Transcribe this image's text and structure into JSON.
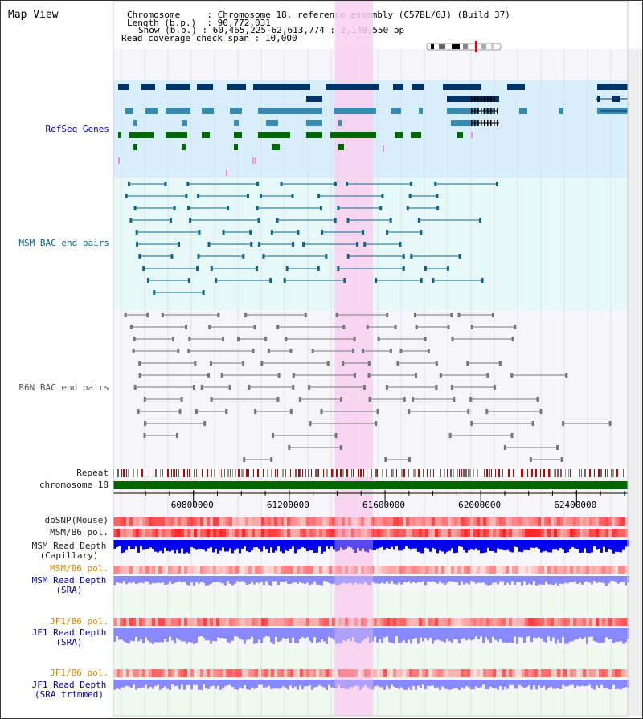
{
  "title": "Map View",
  "info": {
    "chromosome_label": "Chromosome",
    "chromosome_value": "Chromosome 18, reference assembly (C57BL/6J) (Build 37)",
    "length_label": "Length (b.p.)",
    "length_value": "90,772,031",
    "show_label": "Show (b.p.)",
    "show_value": "60,465,225-62,613,774 : 2,148,550 bp",
    "coverage_label": "Read coverage check span",
    "coverage_value": "10,000"
  },
  "view": {
    "start": 60465225,
    "end": 62613774,
    "highlight_start": 61390000,
    "highlight_end": 61550000
  },
  "tracks": {
    "refseq": {
      "label": "RefSeq Genes",
      "color": "#0000aa"
    },
    "msm_bac": {
      "label": "MSM BAC end pairs",
      "color": "#006680"
    },
    "b6n_bac": {
      "label": "B6N BAC end pairs",
      "color": "#555555"
    },
    "repeat": {
      "label": "Repeat"
    },
    "chrom": {
      "label": "chromosome 18"
    },
    "dbsnp": {
      "label": "dbSNP(Mouse)"
    },
    "msm_b6_pol_1": {
      "label": "MSM/B6 pol."
    },
    "msm_depth_cap": {
      "label": "MSM Read Depth\n(Capillary)"
    },
    "msm_b6_pol_2": {
      "label": "MSM/B6 pol."
    },
    "msm_depth_sra": {
      "label": "MSM Read Depth\n(SRA)"
    },
    "jf1_b6_pol_1": {
      "label": "JF1/B6 pol."
    },
    "jf1_depth_sra": {
      "label": "JF1 Read Depth\n(SRA)"
    },
    "jf1_b6_pol_2": {
      "label": "JF1/B6 pol."
    },
    "jf1_depth_trim": {
      "label": "JF1 Read Depth\n(SRA trimmed)"
    }
  },
  "axis": {
    "ticks": [
      {
        "value": 60800000,
        "label": "60800000"
      },
      {
        "value": 61200000,
        "label": "61200000"
      },
      {
        "value": 61600000,
        "label": "61600000"
      },
      {
        "value": 62000000,
        "label": "62000000"
      },
      {
        "value": 62400000,
        "label": "62400000"
      }
    ]
  },
  "colors": {
    "refseq_bg": "#d8eefa",
    "bac_bg": "#e6f8f8",
    "highlight": "#f8d0f0",
    "gene_dark": "#003366",
    "gene_mid": "#3a8ab0",
    "gene_green": "#006600",
    "msm_bac": "#116688",
    "b6n_bac": "#777777",
    "chrom": "#006600",
    "depth_blue": "#0000ee",
    "depth_light": "#8888ff",
    "sra_bg": "#eefaee",
    "label_blue": "#0000aa",
    "label_orange": "#dd8800",
    "label_teal": "#006680",
    "label_gray": "#555555",
    "label_black": "#222222"
  }
}
